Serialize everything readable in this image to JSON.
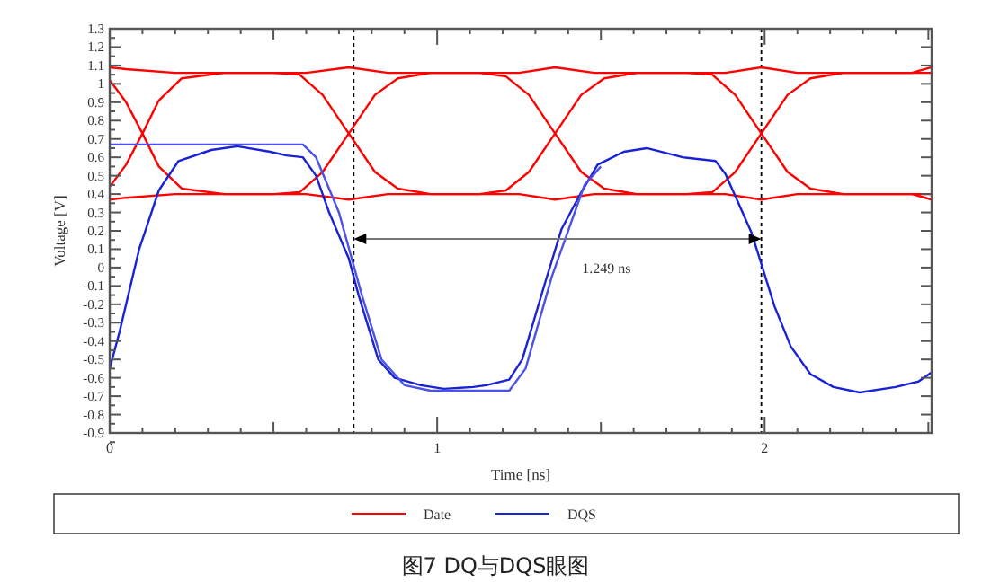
{
  "chart_data": {
    "type": "line",
    "xlabel": "Time [ns]",
    "ylabel": "Voltage [V]",
    "xlim": [
      0,
      2.51
    ],
    "xticks": [
      0,
      1,
      2
    ],
    "ylim": [
      -0.9,
      1.3
    ],
    "yticks": [
      -0.9,
      -0.8,
      -0.7,
      -0.6,
      -0.5,
      -0.4,
      -0.3,
      -0.2,
      -0.1,
      0,
      0.1,
      0.2,
      0.3,
      0.4,
      0.5,
      0.6,
      0.7,
      0.8,
      0.9,
      1,
      1.1,
      1.2,
      1.3
    ],
    "grid": false,
    "legend": "bottom",
    "marker": "none",
    "line_style": "solid",
    "series": [
      {
        "name": "Date",
        "color": "#ff0000",
        "x": [
          0,
          0.05,
          0.1,
          0.15,
          0.22,
          0.35,
          0.5,
          0.58,
          0.65,
          0.73,
          0.81,
          0.88,
          0.98,
          1.13,
          1.21,
          1.28,
          1.36,
          1.44,
          1.51,
          1.61,
          1.76,
          1.84,
          1.91,
          1.99,
          2.07,
          2.14,
          2.24,
          2.4,
          2.51
        ],
        "values": [
          1.02,
          0.9,
          0.73,
          0.55,
          0.43,
          0.4,
          0.4,
          0.41,
          0.52,
          0.73,
          0.94,
          1.03,
          1.06,
          1.06,
          1.04,
          0.94,
          0.73,
          0.52,
          0.43,
          0.4,
          0.4,
          0.41,
          0.52,
          0.73,
          0.94,
          1.03,
          1.06,
          1.06,
          1.06
        ]
      },
      {
        "color": "#ff0000",
        "x": [
          0,
          0.05,
          0.1,
          0.15,
          0.22,
          0.35,
          0.5,
          0.58,
          0.65,
          0.73,
          0.81,
          0.88,
          0.98,
          1.13,
          1.21,
          1.28,
          1.36,
          1.44,
          1.51,
          1.61,
          1.76,
          1.84,
          1.91,
          1.99,
          2.07,
          2.14,
          2.24,
          2.4,
          2.51
        ],
        "values": [
          0.44,
          0.56,
          0.73,
          0.91,
          1.03,
          1.06,
          1.06,
          1.05,
          0.94,
          0.73,
          0.52,
          0.43,
          0.4,
          0.4,
          0.42,
          0.52,
          0.73,
          0.94,
          1.03,
          1.06,
          1.06,
          1.05,
          0.94,
          0.73,
          0.52,
          0.43,
          0.4,
          0.4,
          0.4
        ]
      },
      {
        "color": "#ff0000",
        "x": [
          0,
          0.05,
          0.2,
          0.6,
          0.73,
          0.85,
          1.25,
          1.36,
          1.48,
          1.88,
          1.99,
          2.1,
          2.45,
          2.51
        ],
        "values": [
          1.09,
          1.08,
          1.06,
          1.06,
          1.09,
          1.06,
          1.06,
          1.09,
          1.06,
          1.06,
          1.09,
          1.06,
          1.06,
          1.09
        ]
      },
      {
        "color": "#ff0000",
        "x": [
          0,
          0.05,
          0.2,
          0.6,
          0.73,
          0.85,
          1.25,
          1.36,
          1.48,
          1.88,
          1.99,
          2.1,
          2.45,
          2.51
        ],
        "values": [
          0.37,
          0.38,
          0.4,
          0.4,
          0.37,
          0.4,
          0.4,
          0.37,
          0.4,
          0.4,
          0.37,
          0.4,
          0.4,
          0.37
        ]
      },
      {
        "name": "DQS",
        "color": "#1a22d6",
        "x": [
          0,
          0.03,
          0.09,
          0.15,
          0.21,
          0.31,
          0.39,
          0.49,
          0.54,
          0.59,
          0.63,
          0.67,
          0.73,
          0.76,
          0.82,
          0.87,
          0.95,
          1.02,
          1.11,
          1.15,
          1.22,
          1.26,
          1.33,
          1.38,
          1.44,
          1.49,
          1.57,
          1.64,
          1.75,
          1.85,
          1.88,
          1.92,
          1.96,
          1.99,
          2.03,
          2.08,
          2.14,
          2.21,
          2.29,
          2.4,
          2.47,
          2.51
        ],
        "values": [
          -0.55,
          -0.35,
          0.1,
          0.42,
          0.58,
          0.64,
          0.66,
          0.63,
          0.61,
          0.6,
          0.5,
          0.3,
          0.05,
          -0.15,
          -0.5,
          -0.6,
          -0.64,
          -0.66,
          -0.65,
          -0.64,
          -0.61,
          -0.5,
          -0.08,
          0.21,
          0.41,
          0.56,
          0.63,
          0.65,
          0.6,
          0.58,
          0.51,
          0.35,
          0.19,
          0.02,
          -0.21,
          -0.43,
          -0.58,
          -0.65,
          -0.68,
          -0.65,
          -0.62,
          -0.57
        ]
      },
      {
        "color": "#4a52e8",
        "x": [
          0,
          0.59,
          0.63,
          0.7,
          0.77,
          0.83,
          0.9,
          0.98,
          1.22,
          1.27,
          1.35,
          1.45,
          1.5
        ],
        "values": [
          0.67,
          0.67,
          0.6,
          0.3,
          -0.15,
          -0.5,
          -0.64,
          -0.67,
          -0.67,
          -0.55,
          -0.05,
          0.45,
          0.55
        ]
      }
    ],
    "ref_lines": [
      {
        "axis": "x",
        "value": 0.745,
        "color": "#000000",
        "line_style": "dotted"
      },
      {
        "axis": "x",
        "value": 1.99,
        "color": "#000000",
        "line_style": "dotted"
      }
    ],
    "annotations": [
      "1.249 ns",
      "图7 DQ与DQS眼图"
    ]
  }
}
